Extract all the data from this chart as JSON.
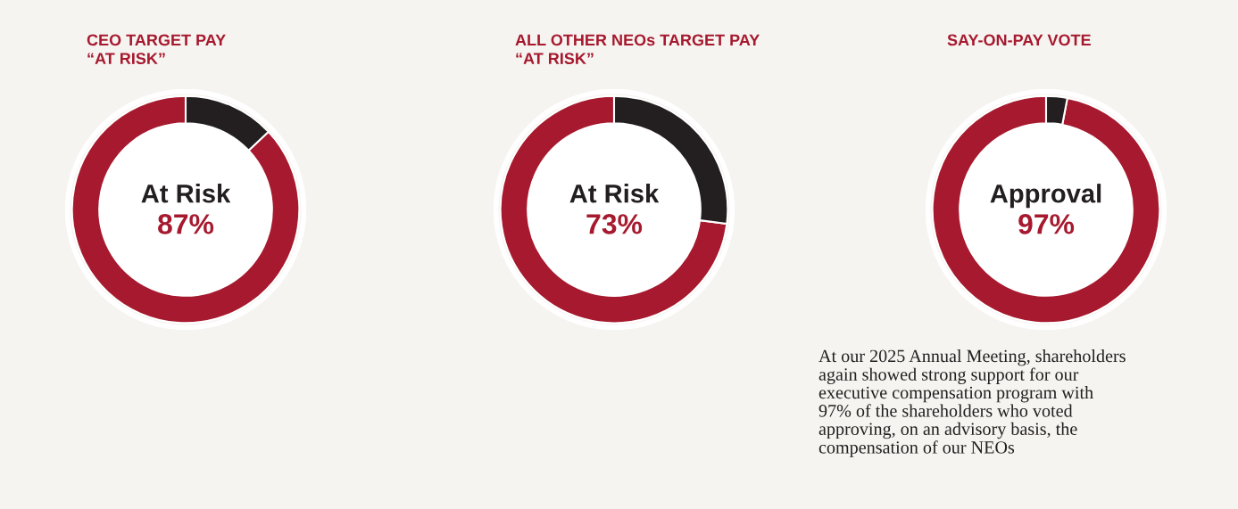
{
  "chart_data": [
    {
      "type": "donut",
      "title": "CEO TARGET PAY\n“AT RISK”",
      "categories": [
        "At Risk",
        null
      ],
      "values": [
        87,
        13
      ],
      "colors": [
        "#a6192e",
        "#231f20"
      ],
      "value_labels": [
        "87%",
        null
      ]
    },
    {
      "type": "donut",
      "title": "ALL OTHER NEOs TARGET PAY\n“AT RISK”",
      "categories": [
        "At Risk",
        null
      ],
      "values": [
        73,
        27
      ],
      "colors": [
        "#a6192e",
        "#231f20"
      ],
      "value_labels": [
        "73%",
        null
      ]
    },
    {
      "type": "donut",
      "title": "SAY-ON-PAY VOTE",
      "categories": [
        "Approval",
        null
      ],
      "values": [
        97,
        3
      ],
      "colors": [
        "#a6192e",
        "#231f20"
      ],
      "value_labels": [
        "97%",
        null
      ],
      "annotations": [
        "At our 2025 Annual Meeting, shareholders\nagain showed strong support for our\nexecutive compensation program with\n97% of the shareholders who voted\napproving, on an advisory basis, the\ncompensation of our NEOs"
      ]
    }
  ]
}
